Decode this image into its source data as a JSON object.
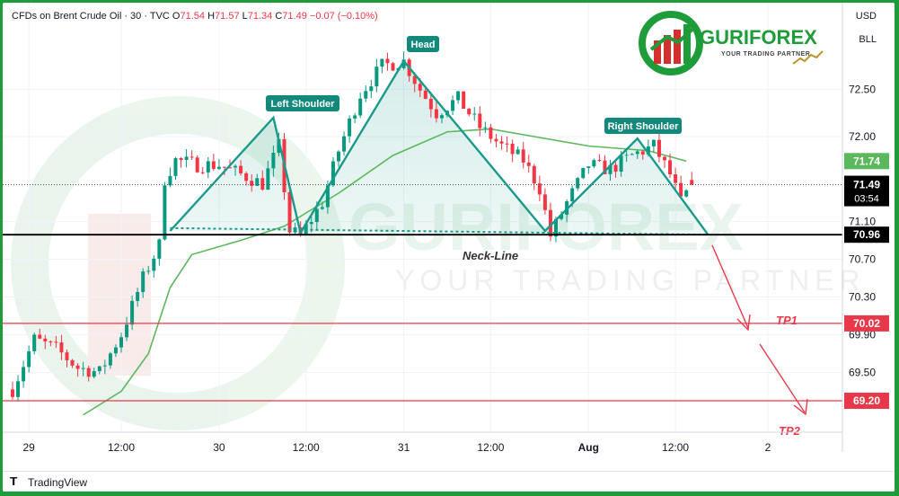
{
  "header": {
    "symbol": "CFDs on Brent Crude Oil · 30 · TVC",
    "open_label": "O",
    "open": "71.54",
    "high_label": "H",
    "high": "71.57",
    "low_label": "L",
    "low": "71.34",
    "close_label": "C",
    "close": "71.49",
    "change": "−0.07 (−0.10%)"
  },
  "scale": {
    "currency": "USD",
    "unit": "BLL"
  },
  "logo": {
    "name": "GURIFOREX",
    "tagline": "YOUR TRADING PARTNER"
  },
  "watermark": {
    "name": "GURIFOREX",
    "tagline": "YOUR TRADING PARTNER"
  },
  "footer": {
    "brand": "TradingView"
  },
  "annotations": {
    "head": "Head",
    "left_shoulder": "Left Shoulder",
    "right_shoulder": "Right Shoulder",
    "neckline": "Neck-Line",
    "tp1": "TP1",
    "tp2": "TP2"
  },
  "price_tags": {
    "ma": "71.74",
    "last": "71.49",
    "countdown": "03:54",
    "neckline": "70.96",
    "tp1": "70.02",
    "tp2": "69.20"
  },
  "colors": {
    "up": "#089981",
    "down": "#f23645",
    "ma": "#5cb85c",
    "pattern": "#1a9a8a",
    "target": "#e8394b",
    "accent": "#1e9c3a"
  },
  "chart_data": {
    "type": "candlestick",
    "title": "CFDs on Brent Crude Oil · 30 · TVC",
    "timeframe": "30",
    "x_tick_labels": [
      "29",
      "12:00",
      "30",
      "12:00",
      "31",
      "12:00",
      "Aug",
      "12:00",
      "2"
    ],
    "y_tick_labels": [
      "72.50",
      "72.00",
      "71.10",
      "70.70",
      "70.30",
      "69.90",
      "69.50"
    ],
    "ylim": [
      69.05,
      73.3
    ],
    "ohlc": {
      "open": 71.54,
      "high": 71.57,
      "low": 71.34,
      "close": 71.49
    },
    "price_path": [
      [
        0,
        69.32
      ],
      [
        4,
        69.85
      ],
      [
        8,
        69.75
      ],
      [
        12,
        69.55
      ],
      [
        16,
        69.5
      ],
      [
        20,
        69.9
      ],
      [
        24,
        70.5
      ],
      [
        27,
        70.85
      ],
      [
        28,
        71.55
      ],
      [
        30,
        71.75
      ],
      [
        34,
        71.7
      ],
      [
        38,
        71.7
      ],
      [
        42,
        71.6
      ],
      [
        46,
        71.5
      ],
      [
        49,
        71.9
      ],
      [
        51,
        71.0
      ],
      [
        53,
        70.95
      ],
      [
        57,
        71.3
      ],
      [
        60,
        71.85
      ],
      [
        64,
        72.45
      ],
      [
        68,
        72.75
      ],
      [
        72,
        72.8
      ],
      [
        75,
        72.5
      ],
      [
        78,
        72.25
      ],
      [
        82,
        72.4
      ],
      [
        86,
        72.1
      ],
      [
        90,
        71.9
      ],
      [
        94,
        71.75
      ],
      [
        97,
        71.45
      ],
      [
        99,
        70.95
      ],
      [
        102,
        71.3
      ],
      [
        106,
        71.7
      ],
      [
        110,
        71.65
      ],
      [
        114,
        71.8
      ],
      [
        118,
        71.9
      ],
      [
        121,
        71.6
      ],
      [
        123,
        71.3
      ],
      [
        125,
        71.49
      ]
    ],
    "moving_average": [
      [
        13,
        69.05
      ],
      [
        20,
        69.3
      ],
      [
        25,
        69.7
      ],
      [
        29,
        70.4
      ],
      [
        33,
        70.75
      ],
      [
        42,
        70.9
      ],
      [
        50,
        71.05
      ],
      [
        60,
        71.4
      ],
      [
        70,
        71.8
      ],
      [
        80,
        72.05
      ],
      [
        88,
        72.08
      ],
      [
        96,
        72.0
      ],
      [
        106,
        71.9
      ],
      [
        117,
        71.85
      ],
      [
        124,
        71.74
      ]
    ],
    "ma_last": 71.74,
    "pattern": {
      "name": "Head and Shoulders",
      "points": [
        {
          "bar": 29,
          "price": 71.0
        },
        {
          "bar": 48,
          "price": 72.2
        },
        {
          "bar": 53,
          "price": 70.98
        },
        {
          "bar": 72,
          "price": 72.8
        },
        {
          "bar": 98,
          "price": 71.0
        },
        {
          "bar": 115,
          "price": 71.98
        },
        {
          "bar": 128,
          "price": 70.96
        }
      ],
      "neckline": 70.96
    },
    "levels": {
      "neckline": 70.96,
      "tp1": 70.02,
      "tp2": 69.2,
      "last": 71.49
    }
  }
}
